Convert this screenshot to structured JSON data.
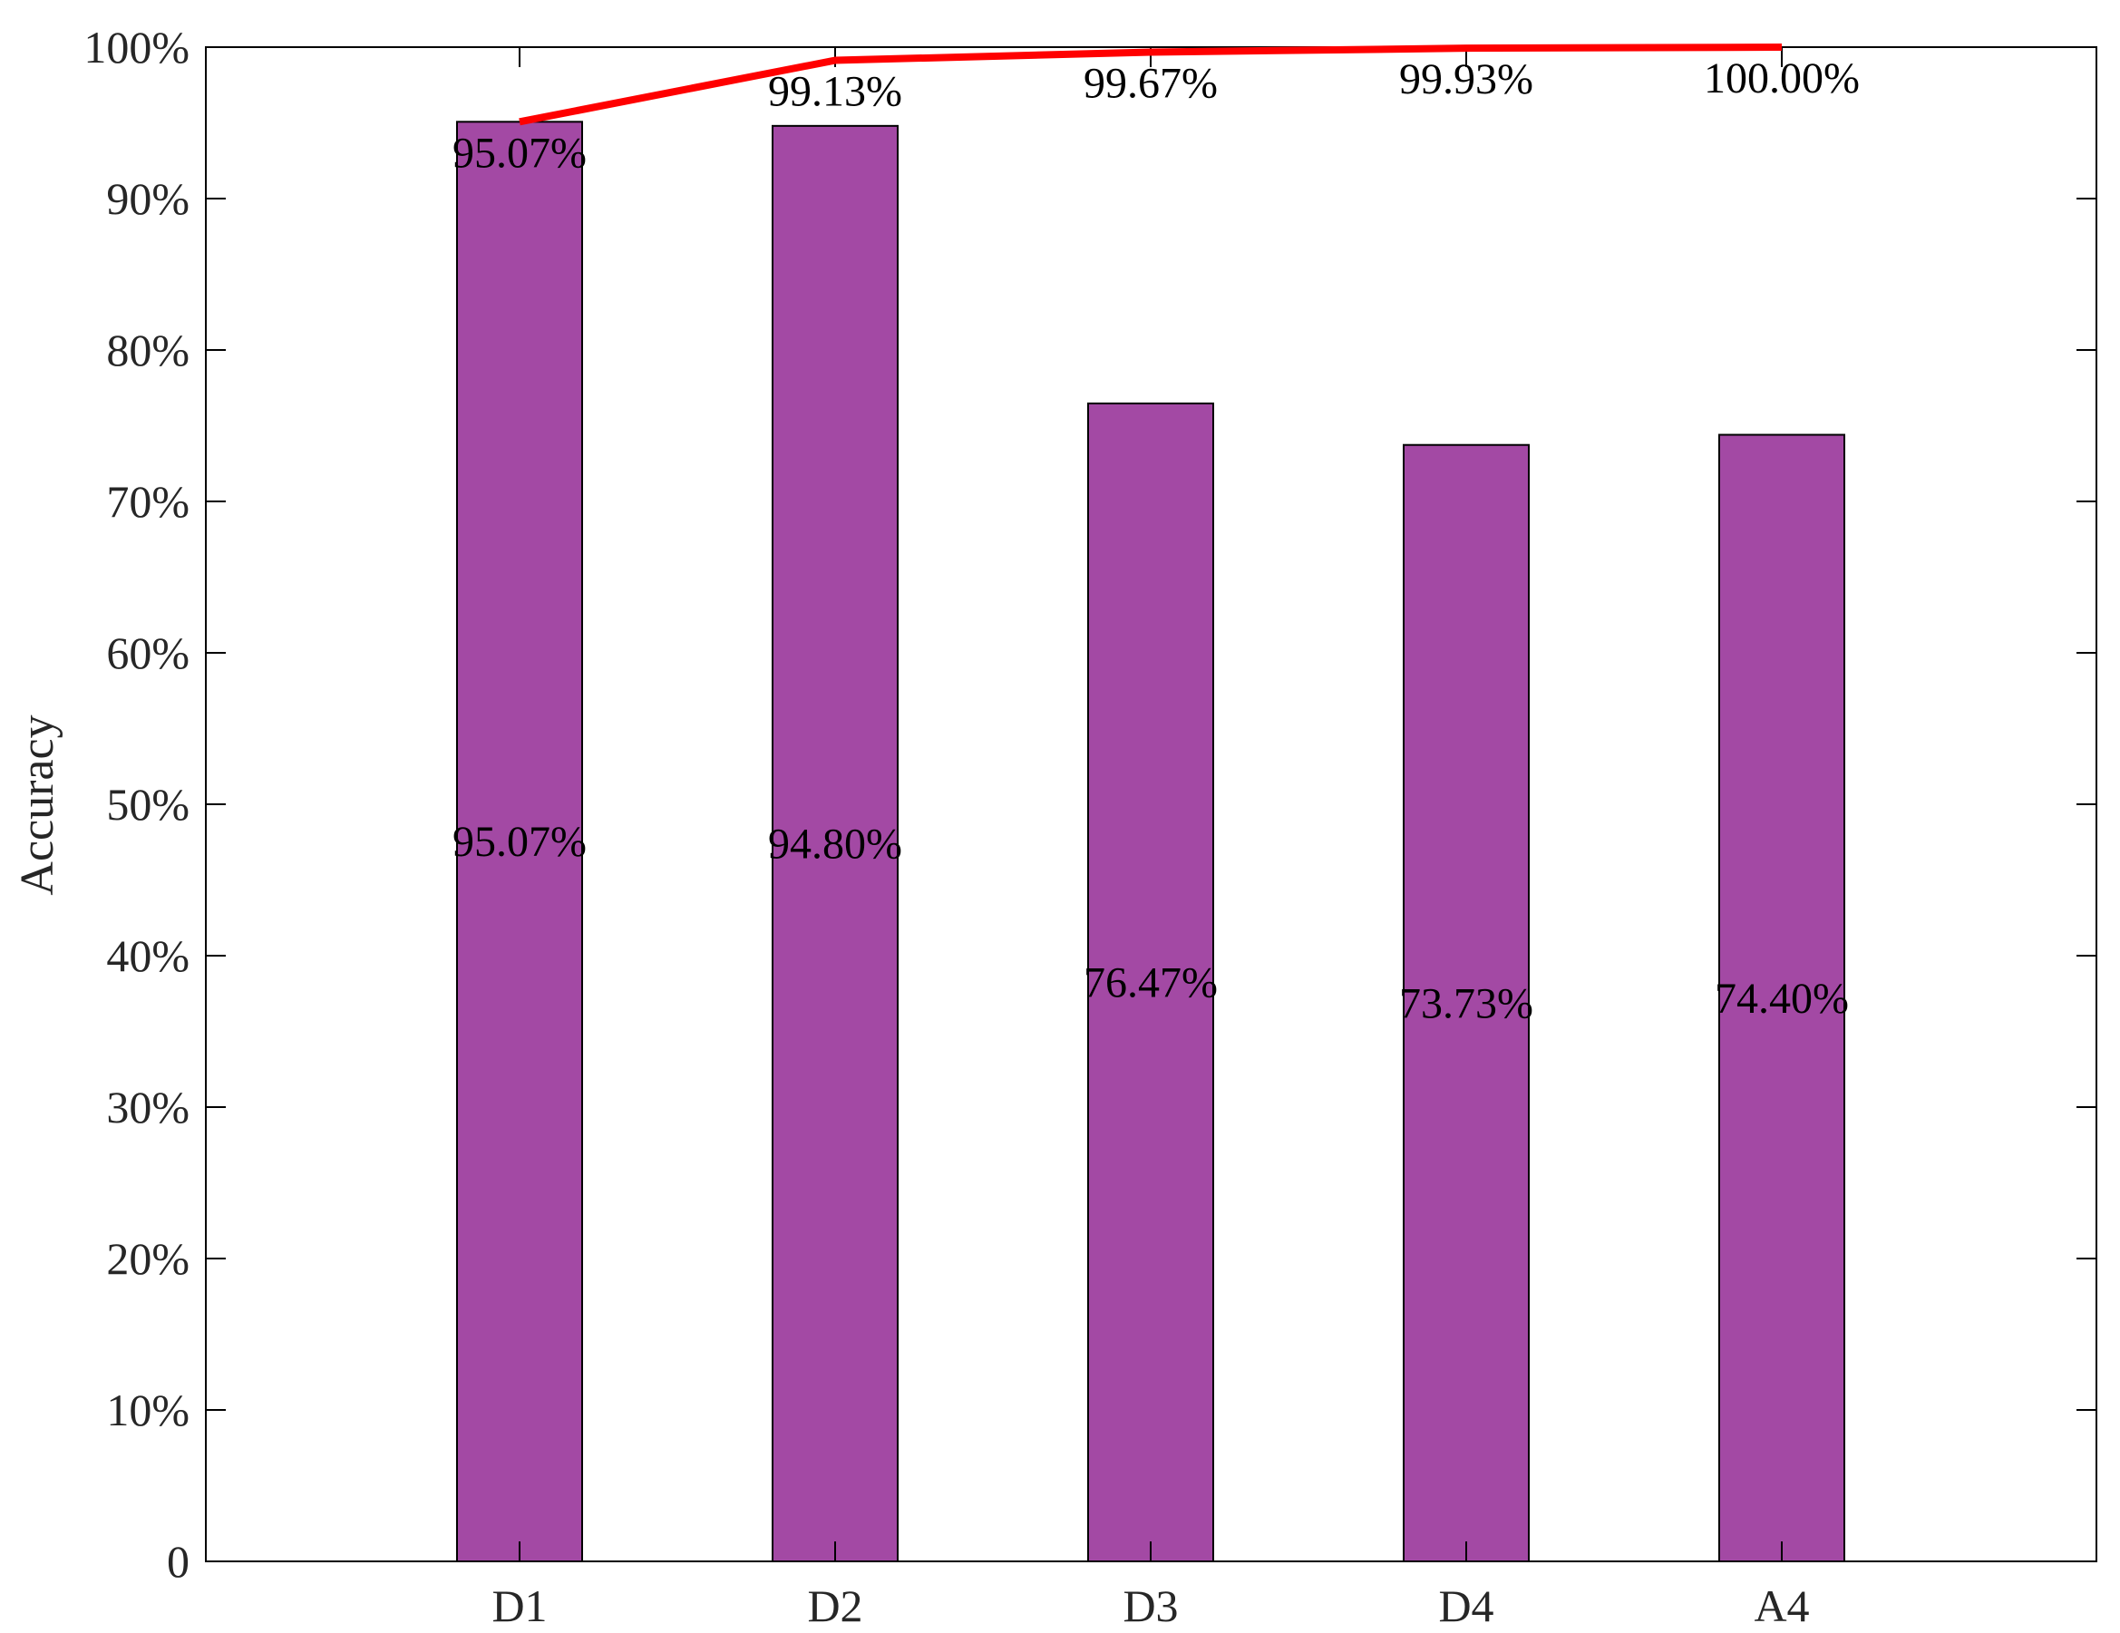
{
  "chart_data": {
    "type": "bar",
    "categories": [
      "D1",
      "D2",
      "D3",
      "D4",
      "A4"
    ],
    "series": [
      {
        "kind": "bar",
        "values": [
          95.07,
          94.8,
          76.47,
          73.73,
          74.4
        ],
        "labels": [
          "95.07%",
          "94.80%",
          "76.47%",
          "73.73%",
          "74.40%"
        ],
        "color": "#A349A4"
      },
      {
        "kind": "line",
        "values": [
          95.07,
          99.13,
          99.67,
          99.93,
          100.0
        ],
        "labels": [
          "95.07%",
          "99.13%",
          "99.67%",
          "99.93%",
          "100.00%"
        ],
        "color": "#FF0000"
      }
    ],
    "xlabel": "",
    "ylabel": "Accuracy",
    "ylim": [
      0,
      100
    ],
    "yticks": [
      0,
      10,
      20,
      30,
      40,
      50,
      60,
      70,
      80,
      90,
      100
    ],
    "ytick_labels": [
      "0",
      "10%",
      "20%",
      "30%",
      "40%",
      "50%",
      "60%",
      "70%",
      "80%",
      "90%",
      "100%"
    ],
    "grid": false,
    "legend": "none"
  }
}
